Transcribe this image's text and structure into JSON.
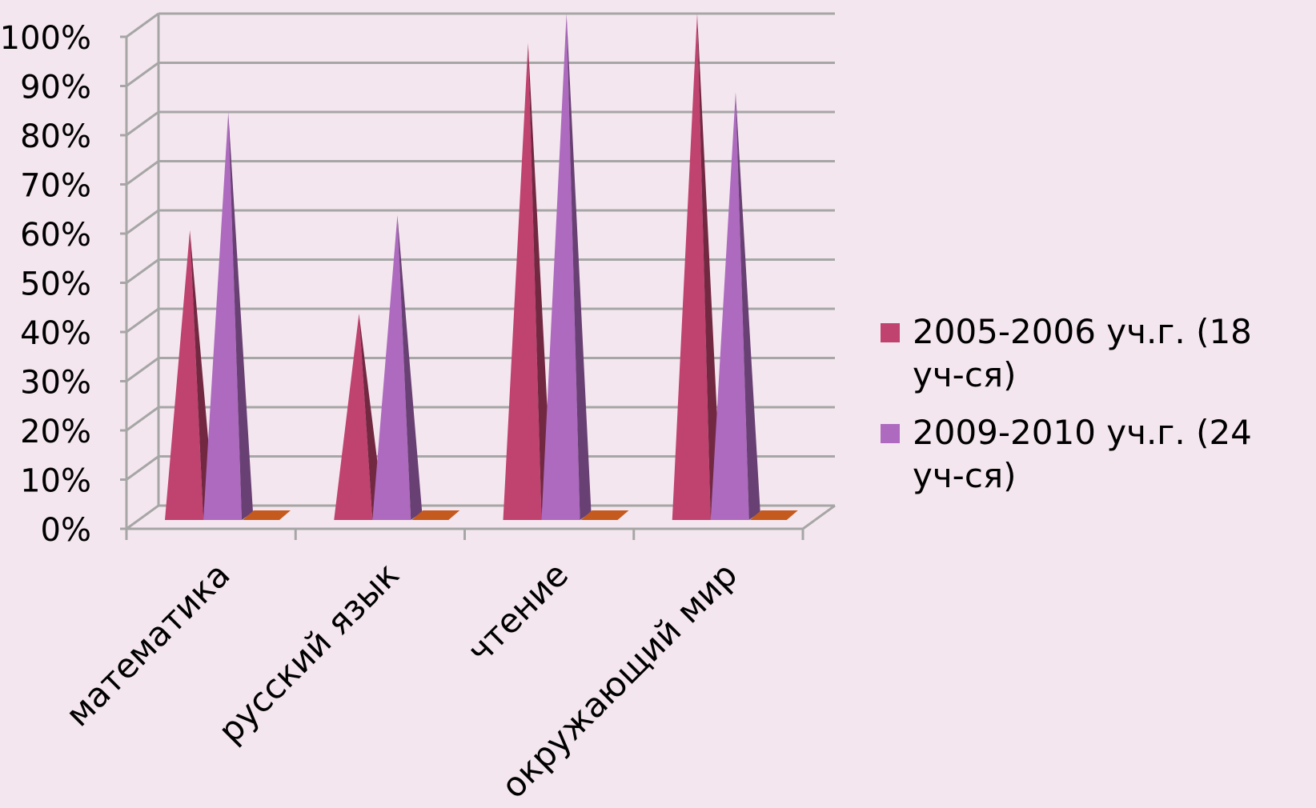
{
  "chart_data": {
    "type": "bar",
    "style": "3d-pyramid",
    "categories": [
      "математика",
      "русский язык",
      "чтение",
      "окружающий мир"
    ],
    "series": [
      {
        "name": "2005-2006 уч.г.  (18 уч-ся)",
        "values": [
          56,
          39,
          94,
          100
        ],
        "color": "#c0426e"
      },
      {
        "name": "2009-2010 уч.г.  (24 уч-ся)",
        "values": [
          80,
          59,
          100,
          84
        ],
        "color": "#ad6abf"
      }
    ],
    "third_series_color": "#c55a1e",
    "yticks": [
      "0%",
      "10%",
      "20%",
      "30%",
      "40%",
      "50%",
      "60%",
      "70%",
      "80%",
      "90%",
      "100%"
    ],
    "ylim": [
      0,
      100
    ],
    "grid": true,
    "legend_position": "right",
    "gridline_color": "#a6a6a6",
    "background": "#f4e6ee"
  }
}
